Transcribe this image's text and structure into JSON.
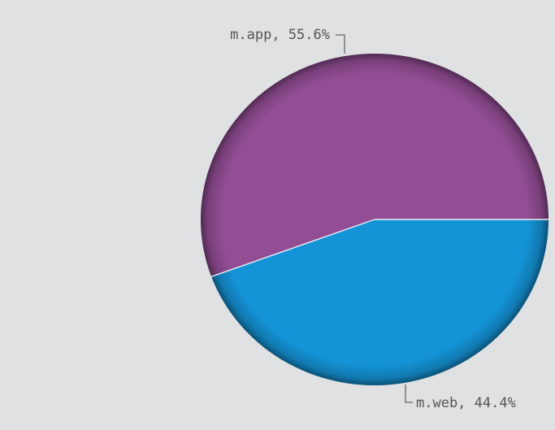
{
  "chart_data": {
    "type": "pie",
    "title": "",
    "slices": [
      {
        "label": "m.app",
        "value": 55.6,
        "color": "#924d94",
        "text": "m.app, 55.6%"
      },
      {
        "label": "m.web",
        "value": 44.4,
        "color": "#1493d6",
        "text": "m.web, 44.4%"
      }
    ],
    "start_angle_deg": 0,
    "direction": "counterclockwise",
    "legend": "none",
    "data_labels": "outside-with-leader-lines"
  }
}
